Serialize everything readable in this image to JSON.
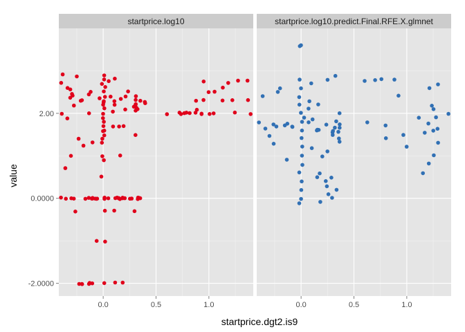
{
  "chart_data": {
    "type": "scatter",
    "xlabel": "startprice.dgt2.is9",
    "ylabel": "value",
    "xlim": [
      -0.42,
      1.42
    ],
    "ylim": [
      -2.3,
      4.0
    ],
    "x_ticks": [
      0.0,
      0.5,
      1.0
    ],
    "x_tick_labels": [
      "0.0",
      "0.5",
      "1.0"
    ],
    "y_ticks": [
      2.0,
      0.0,
      -2.0
    ],
    "y_tick_labels": [
      "2.00",
      "0.0000",
      "-2.0000"
    ],
    "grid": true,
    "background": "#e5e5e5",
    "strip_color": "#cccccc",
    "panels": [
      {
        "title": "startprice.log10",
        "color": "#e0001b",
        "clusters": [
          {
            "x_range": [
              -0.4,
              0.4
            ],
            "y_values": [
              0.0,
              0.0,
              0.0,
              0.0,
              0.0,
              0.0,
              0.0,
              0.0,
              0.0,
              0.0,
              0.0,
              0.0,
              0.0,
              0.0,
              0.0,
              0.0,
              0.0,
              0.0,
              0.0,
              0.0,
              0.0,
              0.0,
              0.0,
              0.0,
              0.0,
              0.0,
              0.0,
              0.0,
              0.0,
              0.0
            ]
          },
          {
            "x_range": [
              -0.4,
              0.4
            ],
            "y_values": [
              2.0,
              2.05,
              2.1,
              2.15,
              2.2,
              2.25,
              2.3,
              2.35,
              2.4,
              2.45,
              2.5,
              2.55,
              2.6,
              2.2,
              2.25,
              2.3,
              2.35,
              2.4,
              2.3,
              2.2,
              2.1,
              2.0,
              1.9,
              1.7,
              1.7,
              1.7,
              1.5,
              1.3,
              1.0,
              2.7,
              2.8,
              2.9,
              2.85,
              2.75,
              1.25,
              1.4,
              0.7,
              1.0,
              1.6,
              2.35,
              2.45,
              2.15,
              2.05,
              2.25,
              2.4,
              2.3,
              2.2,
              2.3,
              2.4,
              2.5
            ]
          },
          {
            "x_range": [
              -0.02,
              0.02
            ],
            "y_values": [
              2.9,
              2.8,
              2.7,
              2.6,
              2.5,
              2.4,
              2.3,
              2.2,
              2.1,
              2.0,
              1.9,
              1.8,
              1.7,
              1.6,
              1.5,
              1.4,
              1.3,
              1.0,
              0.9,
              0.5,
              0.0,
              -0.3,
              -1.0,
              -2.0
            ]
          },
          {
            "x_range": [
              -0.25,
              0.35
            ],
            "y_values": [
              -2.0,
              -2.0,
              -2.0,
              -2.0,
              -2.0,
              -2.0,
              -2.0,
              -2.0
            ]
          },
          {
            "x_range": [
              -0.3,
              0.3
            ],
            "y_values": [
              -0.3,
              -0.3,
              -1.0,
              -0.3
            ]
          },
          {
            "x_range": [
              0.6,
              1.4
            ],
            "y_values": [
              2.0,
              2.0,
              2.0,
              2.0,
              2.0,
              2.0,
              2.0,
              2.0,
              2.0,
              2.0,
              2.0,
              2.0,
              2.3,
              2.3,
              2.3,
              2.3,
              2.3,
              2.5,
              2.5,
              2.6,
              2.7,
              2.75,
              2.75,
              2.75,
              2.1,
              2.0
            ]
          }
        ]
      },
      {
        "title": "startprice.log10.predict.Final.RFE.X.glmnet",
        "color": "#3170b4",
        "clusters": [
          {
            "x_range": [
              -0.4,
              0.4
            ],
            "y_values": [
              1.6,
              1.65,
              1.7,
              1.75,
              1.8,
              1.85,
              1.9,
              1.55,
              1.5,
              1.6,
              1.7,
              1.8,
              1.65,
              1.75,
              1.6,
              1.7,
              1.8,
              1.7,
              1.6,
              1.75,
              1.4,
              1.3,
              1.2,
              1.1,
              1.0,
              0.9,
              2.0,
              2.1,
              2.2,
              2.3,
              2.4,
              2.5,
              2.6,
              2.7,
              2.8,
              2.9,
              0.5,
              0.4,
              0.3,
              0.2,
              0.1,
              0.0,
              -0.1,
              0.5,
              0.6,
              1.45,
              1.35,
              1.65,
              1.55,
              1.75
            ]
          },
          {
            "x_range": [
              -0.02,
              0.02
            ],
            "y_values": [
              3.6,
              3.6,
              2.8,
              2.6,
              2.4,
              2.2,
              2.0,
              1.8,
              1.6,
              1.4,
              1.2,
              1.0,
              0.8,
              0.6,
              0.4,
              0.2,
              0.0,
              -0.1
            ]
          },
          {
            "x_range": [
              0.6,
              1.4
            ],
            "y_values": [
              2.8,
              2.8,
              2.8,
              2.75,
              2.7,
              2.6,
              2.4,
              2.2,
              2.0,
              1.9,
              1.8,
              1.75,
              1.7,
              1.6,
              1.5,
              1.4,
              1.3,
              1.2,
              1.0,
              0.8,
              0.6,
              1.55,
              1.65,
              1.9,
              2.1
            ]
          }
        ]
      }
    ]
  }
}
